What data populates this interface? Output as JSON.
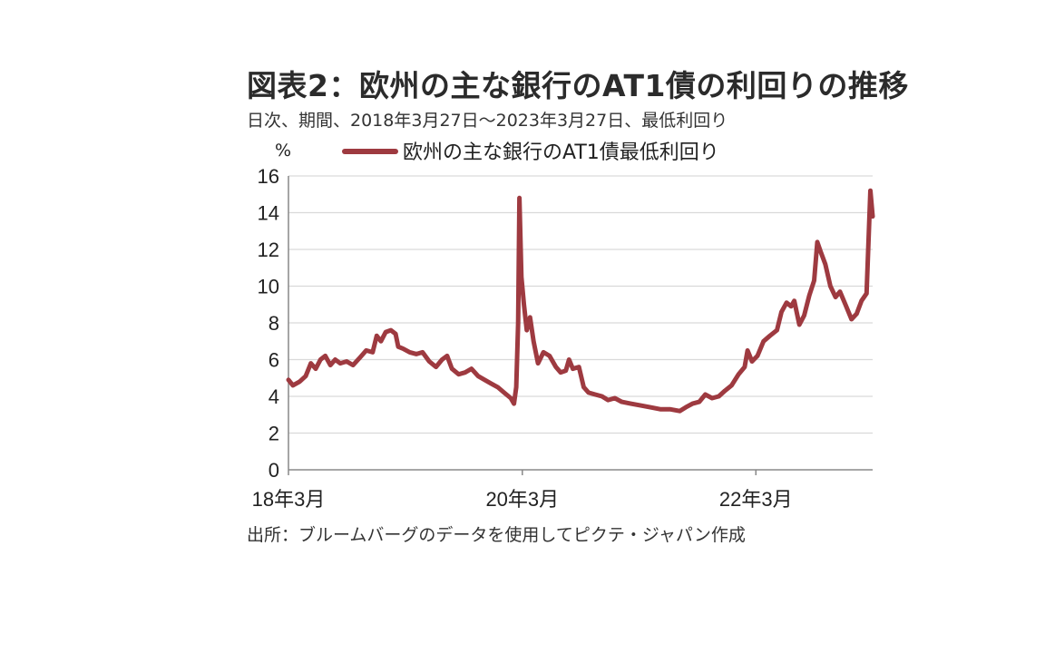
{
  "title": "図表2：欧州の主な銀行のAT1債の利回りの推移",
  "subtitle": "日次、期間、2018年3月27日～2023年3月27日、最低利回り",
  "source": "出所：ブルームバーグのデータを使用してピクテ・ジャパン作成",
  "colors": {
    "series": "#9e3a40",
    "grid": "#d9d9d9",
    "axis": "#888888"
  },
  "chart_data": {
    "type": "line",
    "unit_label": "%",
    "ylim": [
      0,
      16
    ],
    "yticks": [
      0,
      2,
      4,
      6,
      8,
      10,
      12,
      14,
      16
    ],
    "xlim": [
      "2018-03-27",
      "2023-03-27"
    ],
    "xticks": [
      {
        "date": "2018-03-27",
        "label": "18年3月"
      },
      {
        "date": "2020-03-27",
        "label": "20年3月"
      },
      {
        "date": "2022-03-27",
        "label": "22年3月"
      }
    ],
    "grid": true,
    "legend_position": "top",
    "series": [
      {
        "name": "欧州の主な銀行のAT1債最低利回り",
        "points": [
          [
            "2018-03-27",
            4.9
          ],
          [
            "2018-04-10",
            4.6
          ],
          [
            "2018-05-01",
            4.8
          ],
          [
            "2018-05-20",
            5.1
          ],
          [
            "2018-06-05",
            5.8
          ],
          [
            "2018-06-20",
            5.5
          ],
          [
            "2018-07-05",
            6.0
          ],
          [
            "2018-07-20",
            6.2
          ],
          [
            "2018-08-05",
            5.7
          ],
          [
            "2018-08-20",
            6.0
          ],
          [
            "2018-09-05",
            5.8
          ],
          [
            "2018-09-25",
            5.9
          ],
          [
            "2018-10-15",
            5.7
          ],
          [
            "2018-11-05",
            6.1
          ],
          [
            "2018-11-25",
            6.5
          ],
          [
            "2018-12-15",
            6.4
          ],
          [
            "2018-12-28",
            7.3
          ],
          [
            "2019-01-10",
            7.0
          ],
          [
            "2019-01-25",
            7.5
          ],
          [
            "2019-02-10",
            7.6
          ],
          [
            "2019-02-25",
            7.4
          ],
          [
            "2019-03-05",
            6.7
          ],
          [
            "2019-03-20",
            6.6
          ],
          [
            "2019-04-10",
            6.4
          ],
          [
            "2019-05-01",
            6.3
          ],
          [
            "2019-05-20",
            6.4
          ],
          [
            "2019-06-10",
            5.9
          ],
          [
            "2019-07-01",
            5.6
          ],
          [
            "2019-07-20",
            6.0
          ],
          [
            "2019-08-05",
            6.2
          ],
          [
            "2019-08-20",
            5.5
          ],
          [
            "2019-09-10",
            5.2
          ],
          [
            "2019-09-30",
            5.3
          ],
          [
            "2019-10-20",
            5.5
          ],
          [
            "2019-11-10",
            5.1
          ],
          [
            "2019-11-30",
            4.9
          ],
          [
            "2019-12-20",
            4.7
          ],
          [
            "2020-01-10",
            4.5
          ],
          [
            "2020-01-30",
            4.2
          ],
          [
            "2020-02-20",
            3.9
          ],
          [
            "2020-03-01",
            3.6
          ],
          [
            "2020-03-08",
            4.5
          ],
          [
            "2020-03-14",
            8.0
          ],
          [
            "2020-03-18",
            14.8
          ],
          [
            "2020-03-24",
            10.5
          ],
          [
            "2020-04-01",
            9.0
          ],
          [
            "2020-04-10",
            7.6
          ],
          [
            "2020-04-20",
            8.3
          ],
          [
            "2020-05-01",
            7.0
          ],
          [
            "2020-05-15",
            5.8
          ],
          [
            "2020-06-01",
            6.4
          ],
          [
            "2020-06-20",
            6.2
          ],
          [
            "2020-07-10",
            5.6
          ],
          [
            "2020-07-25",
            5.3
          ],
          [
            "2020-08-10",
            5.4
          ],
          [
            "2020-08-20",
            6.0
          ],
          [
            "2020-09-01",
            5.5
          ],
          [
            "2020-09-20",
            5.6
          ],
          [
            "2020-10-05",
            4.5
          ],
          [
            "2020-10-20",
            4.2
          ],
          [
            "2020-11-10",
            4.1
          ],
          [
            "2020-12-01",
            4.0
          ],
          [
            "2020-12-20",
            3.8
          ],
          [
            "2021-01-10",
            3.9
          ],
          [
            "2021-02-01",
            3.7
          ],
          [
            "2021-03-01",
            3.6
          ],
          [
            "2021-04-01",
            3.5
          ],
          [
            "2021-05-01",
            3.4
          ],
          [
            "2021-06-01",
            3.3
          ],
          [
            "2021-07-01",
            3.3
          ],
          [
            "2021-08-01",
            3.2
          ],
          [
            "2021-08-20",
            3.4
          ],
          [
            "2021-09-10",
            3.6
          ],
          [
            "2021-10-01",
            3.7
          ],
          [
            "2021-10-20",
            4.1
          ],
          [
            "2021-11-10",
            3.9
          ],
          [
            "2021-12-01",
            4.0
          ],
          [
            "2021-12-20",
            4.3
          ],
          [
            "2022-01-10",
            4.6
          ],
          [
            "2022-02-01",
            5.2
          ],
          [
            "2022-02-20",
            5.6
          ],
          [
            "2022-03-01",
            6.5
          ],
          [
            "2022-03-15",
            5.9
          ],
          [
            "2022-04-01",
            6.2
          ],
          [
            "2022-04-20",
            7.0
          ],
          [
            "2022-05-10",
            7.3
          ],
          [
            "2022-06-01",
            7.6
          ],
          [
            "2022-06-15",
            8.6
          ],
          [
            "2022-07-01",
            9.1
          ],
          [
            "2022-07-15",
            8.9
          ],
          [
            "2022-07-25",
            9.2
          ],
          [
            "2022-08-10",
            7.9
          ],
          [
            "2022-08-25",
            8.4
          ],
          [
            "2022-09-10",
            9.5
          ],
          [
            "2022-09-25",
            10.3
          ],
          [
            "2022-10-05",
            12.4
          ],
          [
            "2022-10-15",
            11.9
          ],
          [
            "2022-10-30",
            11.2
          ],
          [
            "2022-11-15",
            10.0
          ],
          [
            "2022-12-01",
            9.4
          ],
          [
            "2022-12-15",
            9.7
          ],
          [
            "2023-01-01",
            9.0
          ],
          [
            "2023-01-20",
            8.2
          ],
          [
            "2023-02-05",
            8.5
          ],
          [
            "2023-02-20",
            9.2
          ],
          [
            "2023-03-08",
            9.6
          ],
          [
            "2023-03-13",
            12.0
          ],
          [
            "2023-03-20",
            15.2
          ],
          [
            "2023-03-27",
            13.8
          ]
        ]
      }
    ]
  }
}
